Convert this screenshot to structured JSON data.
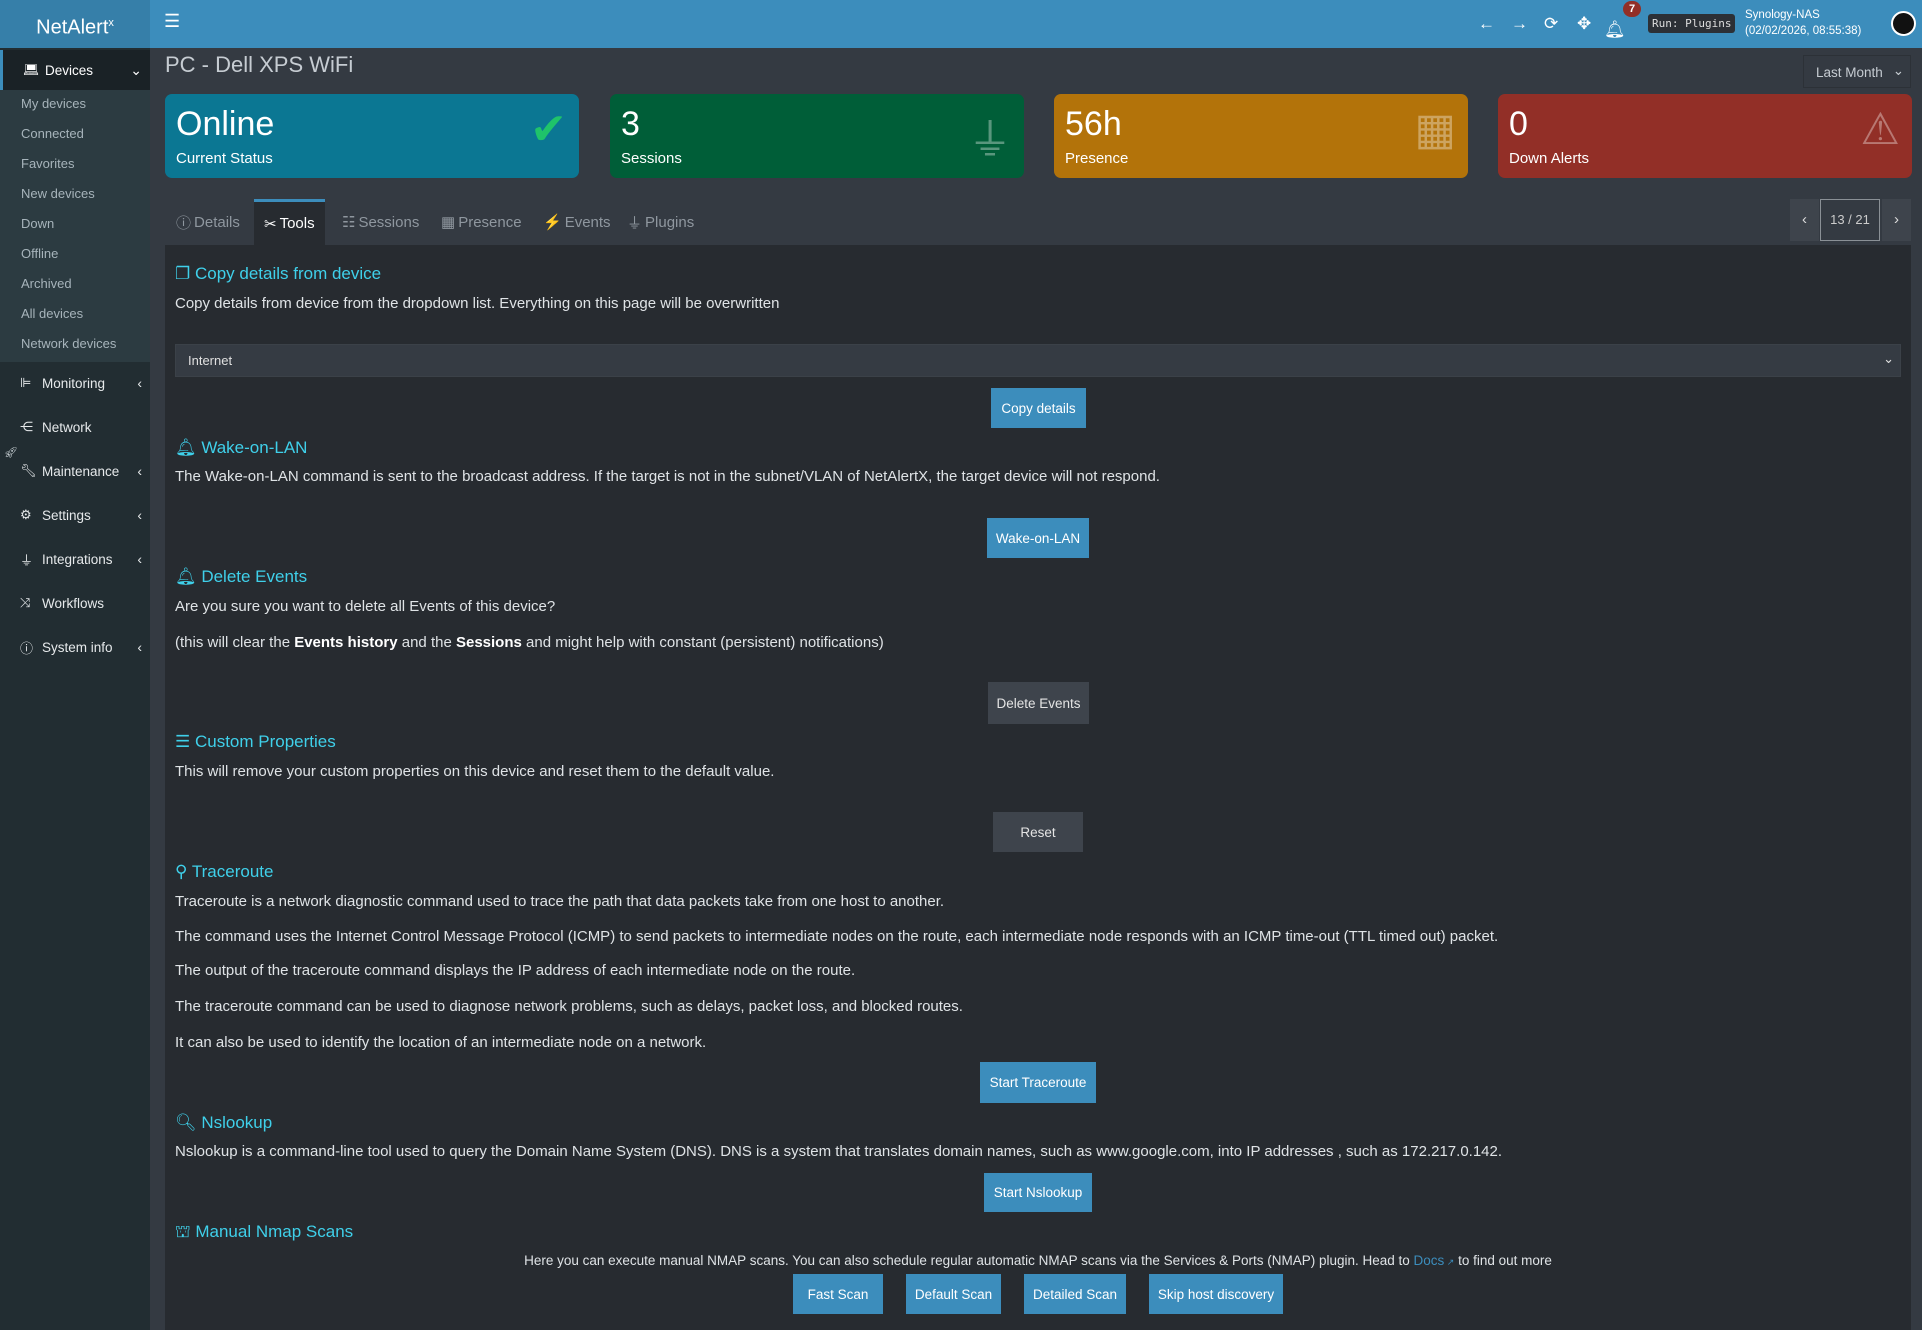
{
  "app": {
    "logo": "NetAlert",
    "logo_sup": "x",
    "menu_icon": "hamburger-icon"
  },
  "header": {
    "notif_count": "7",
    "run_label": "Run: Plugins",
    "host": "Synology-NAS",
    "datetime": "(02/02/2026, 08:55:38)"
  },
  "sidebar": {
    "devices": "Devices",
    "sub": [
      "My devices",
      "Connected",
      "Favorites",
      "New devices",
      "Down",
      "Offline",
      "Archived",
      "All devices",
      "Network devices"
    ],
    "items": [
      {
        "label": "Monitoring",
        "icon": "chart-icon",
        "chev": true
      },
      {
        "label": "Network",
        "icon": "sitemap-icon",
        "chev": false
      },
      {
        "label": "Maintenance",
        "icon": "wrench-icon",
        "chev": true
      },
      {
        "label": "Settings",
        "icon": "gear-icon",
        "chev": true
      },
      {
        "label": "Integrations",
        "icon": "plug-icon",
        "chev": true
      },
      {
        "label": "Workflows",
        "icon": "shuffle-icon",
        "chev": false
      },
      {
        "label": "System info",
        "icon": "info-icon",
        "chev": true
      }
    ]
  },
  "page": {
    "title": "PC - Dell XPS WiFi",
    "period": "Last Month"
  },
  "cards": [
    {
      "value": "Online",
      "label": "Current Status",
      "color": "#0b7793"
    },
    {
      "value": "3",
      "label": "Sessions",
      "color": "#005e38"
    },
    {
      "value": "56h",
      "label": "Presence",
      "color": "#b3730a"
    },
    {
      "value": "0",
      "label": "Down Alerts",
      "color": "#922f27"
    }
  ],
  "tabs": [
    "Details",
    "Tools",
    "Sessions",
    "Presence",
    "Events",
    "Plugins"
  ],
  "pager": {
    "counter": "13 / 21"
  },
  "tools": {
    "copy": {
      "title": "Copy details from device",
      "text": "Copy details from device from the dropdown list. Everything on this page will be overwritten",
      "selected": "Internet",
      "button": "Copy details"
    },
    "wol": {
      "title": "Wake-on-LAN",
      "text": "The Wake-on-LAN command is sent to the broadcast address. If the target is not in the subnet/VLAN of NetAlertX, the target device will not respond.",
      "button": "Wake-on-LAN"
    },
    "delete": {
      "title": "Delete Events",
      "text": "Are you sure you want to delete all Events of this device?",
      "t1": "(this will clear the ",
      "b1": "Events history",
      "t2": " and the ",
      "b2": "Sessions",
      "t3": " and might help with constant (persistent) notifications)",
      "button": "Delete Events"
    },
    "custom": {
      "title": "Custom Properties",
      "text": "This will remove your custom properties on this device and reset them to the default value.",
      "button": "Reset"
    },
    "trace": {
      "title": "Traceroute",
      "lines": [
        "Traceroute is a network diagnostic command used to trace the path that data packets take from one host to another.",
        "The command uses the Internet Control Message Protocol (ICMP) to send packets to intermediate nodes on the route, each intermediate node responds with an ICMP time-out (TTL timed out) packet.",
        "The output of the traceroute command displays the IP address of each intermediate node on the route.",
        "The traceroute command can be used to diagnose network problems, such as delays, packet loss, and blocked routes.",
        "It can also be used to identify the location of an intermediate node on a network."
      ],
      "button": "Start Traceroute"
    },
    "nslookup": {
      "title": "Nslookup",
      "text": "Nslookup is a command-line tool used to query the Domain Name System (DNS). DNS is a system that translates domain names, such as www.google.com, into IP addresses , such as 172.217.0.142.",
      "button": "Start Nslookup"
    },
    "nmap": {
      "title": "Manual Nmap Scans",
      "text": "Here you can execute manual NMAP scans. You can also schedule regular automatic NMAP scans via the Services & Ports (NMAP) plugin. Head to ",
      "link": "Docs",
      "text2": " to find out more",
      "buttons": [
        "Fast Scan",
        "Default Scan",
        "Detailed Scan",
        "Skip host discovery"
      ]
    }
  }
}
